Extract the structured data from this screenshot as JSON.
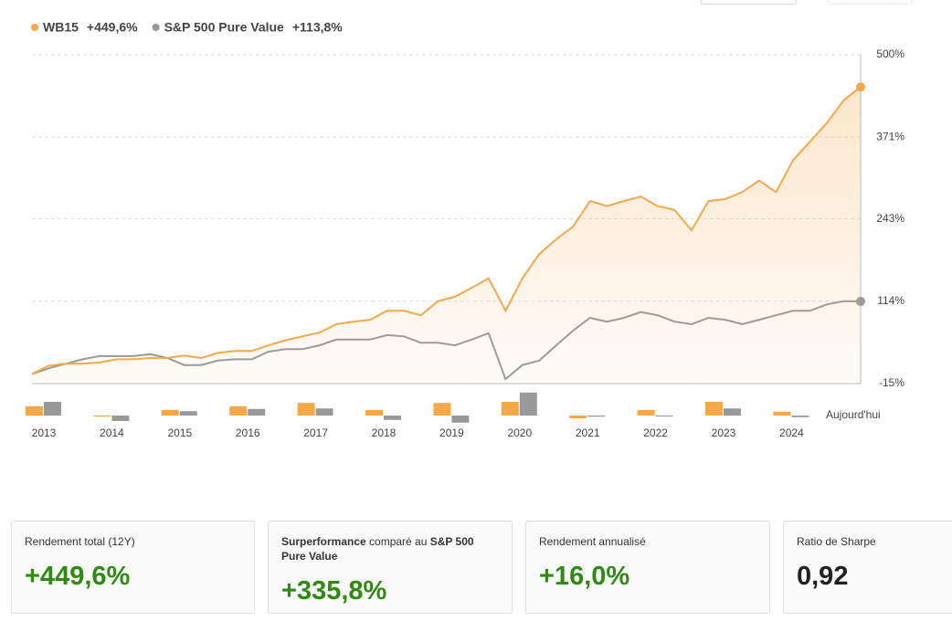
{
  "chart_data": [
    {
      "type": "line",
      "x": [
        2012.75,
        2013,
        2013.25,
        2013.5,
        2013.75,
        2014,
        2014.25,
        2014.5,
        2014.75,
        2015,
        2015.25,
        2015.5,
        2015.75,
        2016,
        2016.25,
        2016.5,
        2016.75,
        2017,
        2017.25,
        2017.5,
        2017.75,
        2018,
        2018.25,
        2018.5,
        2018.75,
        2019,
        2019.25,
        2019.5,
        2019.75,
        2020,
        2020.25,
        2020.5,
        2020.75,
        2021,
        2021.25,
        2021.5,
        2021.75,
        2022,
        2022.25,
        2022.5,
        2022.75,
        2023,
        2023.25,
        2023.5,
        2023.75,
        2024,
        2024.25,
        2024.5,
        2024.75,
        2025
      ],
      "xlim": [
        2012.75,
        2025
      ],
      "ylim": [
        -15,
        500
      ],
      "yticks": [
        {
          "value": -15,
          "label": "-15%"
        },
        {
          "value": 114,
          "label": "114%"
        },
        {
          "value": 243,
          "label": "243%"
        },
        {
          "value": 371,
          "label": "371%"
        },
        {
          "value": 500,
          "label": "500%"
        }
      ],
      "grid": true,
      "x_end_label": "Aujourd'hui",
      "series": [
        {
          "name": "WB15",
          "total_label": "+449,6%",
          "color": "#f5a84a",
          "values": [
            0,
            13,
            16,
            16,
            18,
            23,
            23,
            25,
            25,
            29,
            25,
            33,
            36,
            36,
            45,
            53,
            59,
            65,
            78,
            82,
            85,
            99,
            99,
            92,
            114,
            121,
            135,
            150,
            99,
            150,
            188,
            211,
            231,
            271,
            263,
            271,
            278,
            263,
            257,
            225,
            271,
            274,
            285,
            303,
            285,
            335,
            364,
            393,
            429,
            449.6
          ]
        },
        {
          "name": "S&P 500 Pure Value",
          "total_label": "+113,8%",
          "color": "#999999",
          "values": [
            0,
            9,
            16,
            23,
            28,
            28,
            28,
            31,
            25,
            14,
            14,
            21,
            23,
            23,
            35,
            39,
            39,
            45,
            54,
            54,
            54,
            61,
            59,
            49,
            49,
            45,
            54,
            64,
            -8,
            14,
            21,
            45,
            68,
            88,
            82,
            88,
            97,
            92,
            82,
            78,
            88,
            85,
            78,
            85,
            92,
            99,
            99,
            109,
            114,
            113.8
          ]
        }
      ]
    },
    {
      "type": "bar",
      "categories": [
        "2013",
        "2014",
        "2015",
        "2016",
        "2017",
        "2018",
        "2019",
        "2020",
        "2021",
        "2022",
        "2023",
        "2024"
      ],
      "series": [
        {
          "color": "#f5a84a",
          "values": [
            17,
            -2,
            10,
            17,
            23,
            10,
            23,
            25,
            -5,
            10,
            25,
            7
          ]
        },
        {
          "color": "#999999",
          "values": [
            25,
            -10,
            8,
            12,
            13,
            -8,
            -13,
            42,
            -2,
            0,
            13,
            -3
          ]
        }
      ]
    }
  ],
  "cards": [
    {
      "label": [
        {
          "text": "Rendement total (12Y)",
          "bold": false
        }
      ],
      "value": "+449,6%"
    },
    {
      "label": [
        {
          "text": "Surperformance",
          "bold": true
        },
        {
          "text": " comparé au ",
          "bold": false
        },
        {
          "text": "S&P 500 Pure Value",
          "bold": true
        }
      ],
      "value": "+335,8%"
    },
    {
      "label": [
        {
          "text": "Rendement annualisé",
          "bold": false
        }
      ],
      "value": "+16,0%"
    },
    {
      "label": [
        {
          "text": "Ratio de Sharpe",
          "bold": false
        }
      ],
      "value": "0,92",
      "dark": true
    }
  ]
}
